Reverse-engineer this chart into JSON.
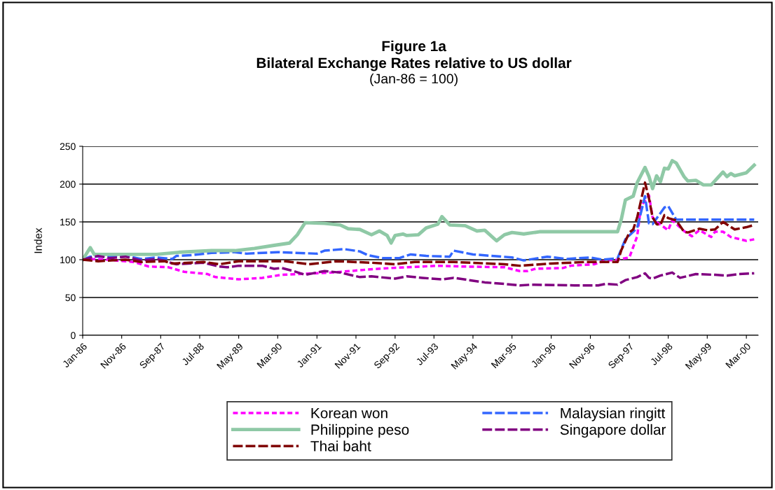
{
  "chart_data": {
    "type": "line",
    "title": "Figure 1a\nBilateral Exchange Rates relative to US dollar",
    "subtitle": "(Jan-86 = 100)",
    "ylabel": "Index",
    "xlim": [
      "1986-01",
      "2000-06"
    ],
    "ylim": [
      0,
      250
    ],
    "yticks": [
      0,
      50,
      100,
      150,
      200,
      250
    ],
    "xticks": [
      {
        "value": "1986-01",
        "label": "Jan-86"
      },
      {
        "value": "1986-11",
        "label": "Nov-86"
      },
      {
        "value": "1987-09",
        "label": "Sep-87"
      },
      {
        "value": "1988-07",
        "label": "Jul-88"
      },
      {
        "value": "1989-05",
        "label": "May-89"
      },
      {
        "value": "1990-03",
        "label": "Mar-90"
      },
      {
        "value": "1991-01",
        "label": "Jan-91"
      },
      {
        "value": "1991-11",
        "label": "Nov-91"
      },
      {
        "value": "1992-09",
        "label": "Sep-92"
      },
      {
        "value": "1993-07",
        "label": "Jul-93"
      },
      {
        "value": "1994-05",
        "label": "May-94"
      },
      {
        "value": "1995-03",
        "label": "Mar-95"
      },
      {
        "value": "1996-01",
        "label": "Jan-96"
      },
      {
        "value": "1996-11",
        "label": "Nov-96"
      },
      {
        "value": "1997-09",
        "label": "Sep-97"
      },
      {
        "value": "1998-07",
        "label": "Jul-98"
      },
      {
        "value": "1999-05",
        "label": "May-99"
      },
      {
        "value": "2000-03",
        "label": "Mar-00"
      }
    ],
    "grid": "y",
    "legend": "bottom",
    "marker": "none",
    "series": [
      {
        "name": "Korean won",
        "color": "#ff00ff",
        "line_style": "dotted",
        "x": [
          "1986-01",
          "1986-05",
          "1987-02",
          "1987-06",
          "1987-11",
          "1988-03",
          "1988-09",
          "1988-11",
          "1989-05",
          "1989-11",
          "1990-04",
          "1990-08",
          "1991-05",
          "1992-02",
          "1992-08",
          "1993-08",
          "1994-02",
          "1995-01",
          "1995-05",
          "1995-07",
          "1995-09",
          "1996-04",
          "1996-06",
          "1996-12",
          "1997-03",
          "1997-06",
          "1997-09",
          "1997-11",
          "1997-12",
          "1998-02",
          "1998-03",
          "1998-04",
          "1998-07",
          "1998-08",
          "1998-11",
          "1999-01",
          "1999-03",
          "1999-06",
          "1999-07",
          "1999-09",
          "1999-11",
          "2000-03",
          "2000-05"
        ],
        "values": [
          100,
          101,
          97,
          91,
          90,
          84,
          81,
          77,
          74,
          76,
          80,
          81,
          83,
          87,
          89,
          92,
          91,
          90,
          85,
          85,
          88,
          89,
          92,
          94,
          99,
          100,
          103,
          131,
          171,
          185,
          156,
          150,
          139,
          152,
          138,
          131,
          139,
          130,
          137,
          137,
          130,
          125,
          127
        ]
      },
      {
        "name": "Malaysian ringitt",
        "color": "#3366ff",
        "line_style": "dashed",
        "x": [
          "1986-01",
          "1986-03",
          "1986-12",
          "1987-04",
          "1987-08",
          "1987-12",
          "1988-01",
          "1988-05",
          "1988-10",
          "1989-04",
          "1989-07",
          "1990-03",
          "1991-01",
          "1991-03",
          "1991-08",
          "1991-12",
          "1992-02",
          "1992-06",
          "1992-10",
          "1993-01",
          "1993-05",
          "1993-11",
          "1993-12",
          "1994-05",
          "1995-03",
          "1995-06",
          "1995-12",
          "1996-05",
          "1996-11",
          "1997-02",
          "1997-06",
          "1997-08",
          "1997-11",
          "1998-01",
          "1998-02",
          "1998-03",
          "1998-06",
          "1998-07",
          "1998-09",
          "2000-05"
        ],
        "values": [
          100,
          104,
          105,
          101,
          103,
          101,
          105,
          106,
          109,
          110,
          108,
          110,
          108,
          112,
          114,
          111,
          106,
          102,
          102,
          107,
          105,
          104,
          112,
          107,
          103,
          99,
          104,
          101,
          103,
          100,
          102,
          127,
          142,
          184,
          148,
          147,
          169,
          171,
          153,
          153
        ]
      },
      {
        "name": "Philippine peso",
        "color": "#8fc9a6",
        "x": [
          "1986-01",
          "1986-03",
          "1986-04",
          "1987-08",
          "1988-02",
          "1988-10",
          "1989-04",
          "1989-09",
          "1990-02",
          "1990-06",
          "1990-08",
          "1990-10",
          "1991-03",
          "1991-07",
          "1991-09",
          "1991-12",
          "1992-03",
          "1992-05",
          "1992-07",
          "1992-08",
          "1992-09",
          "1992-11",
          "1992-12",
          "1993-03",
          "1993-05",
          "1993-08",
          "1993-09",
          "1993-11",
          "1994-03",
          "1994-06",
          "1994-08",
          "1994-11",
          "1995-01",
          "1995-03",
          "1995-06",
          "1995-10",
          "1996-07",
          "1997-06",
          "1997-07",
          "1997-08",
          "1997-10",
          "1997-11",
          "1998-01",
          "1998-02",
          "1998-03",
          "1998-04",
          "1998-05",
          "1998-06",
          "1998-07",
          "1998-08",
          "1998-09",
          "1998-11",
          "1998-12",
          "1999-02",
          "1999-04",
          "1999-06",
          "1999-09",
          "1999-10",
          "1999-11",
          "1999-12",
          "2000-03",
          "2000-05"
        ],
        "values": [
          100,
          116,
          107,
          107,
          110,
          112,
          112,
          115,
          119,
          122,
          133,
          149,
          148,
          146,
          141,
          140,
          133,
          138,
          132,
          122,
          132,
          134,
          132,
          133,
          142,
          147,
          157,
          146,
          145,
          138,
          139,
          125,
          133,
          136,
          134,
          137,
          137,
          137,
          154,
          179,
          184,
          202,
          222,
          210,
          194,
          211,
          203,
          221,
          220,
          231,
          228,
          210,
          204,
          205,
          199,
          199,
          216,
          210,
          214,
          211,
          215,
          225
        ]
      },
      {
        "name": "Singapore dollar",
        "color": "#800080",
        "line_style": "dashed",
        "x": [
          "1986-01",
          "1986-05",
          "1986-08",
          "1986-12",
          "1987-04",
          "1987-08",
          "1988-01",
          "1988-08",
          "1988-12",
          "1989-02",
          "1989-05",
          "1989-11",
          "1990-02",
          "1990-04",
          "1990-07",
          "1990-10",
          "1991-03",
          "1991-07",
          "1991-12",
          "1992-03",
          "1992-09",
          "1992-12",
          "1993-04",
          "1993-09",
          "1993-12",
          "1994-08",
          "1995-01",
          "1995-05",
          "1995-08",
          "1996-07",
          "1997-01",
          "1997-03",
          "1997-06",
          "1997-08",
          "1997-11",
          "1998-01",
          "1998-02",
          "1998-03",
          "1998-05",
          "1998-08",
          "1998-10",
          "1999-02",
          "1999-07",
          "1999-10",
          "2000-01",
          "2000-05"
        ],
        "values": [
          100,
          105,
          102,
          104,
          99,
          101,
          94,
          96,
          91,
          90,
          92,
          92,
          88,
          89,
          85,
          80,
          85,
          83,
          77,
          78,
          75,
          78,
          76,
          74,
          76,
          70,
          68,
          66,
          67,
          66,
          66,
          68,
          67,
          73,
          77,
          82,
          76,
          75,
          79,
          83,
          76,
          81,
          80,
          79,
          81,
          82
        ]
      },
      {
        "name": "Thai baht",
        "color": "#800000",
        "line_style": "dashed",
        "x": [
          "1986-01",
          "1986-05",
          "1986-12",
          "1987-04",
          "1987-10",
          "1987-12",
          "1988-08",
          "1988-12",
          "1989-05",
          "1990-05",
          "1990-11",
          "1991-06",
          "1992-03",
          "1992-09",
          "1993-02",
          "1993-12",
          "1995-01",
          "1995-05",
          "1996-01",
          "1996-10",
          "1997-06",
          "1997-07",
          "1997-09",
          "1997-10",
          "1997-11",
          "1998-01",
          "1998-02",
          "1998-03",
          "1998-04",
          "1998-05",
          "1998-06",
          "1998-07",
          "1998-09",
          "1998-11",
          "1998-12",
          "1999-03",
          "1999-05",
          "1999-07",
          "1999-09",
          "1999-12",
          "2000-03",
          "2000-05"
        ],
        "values": [
          100,
          98,
          100,
          97,
          98,
          95,
          97,
          94,
          98,
          98,
          94,
          98,
          96,
          94,
          97,
          97,
          94,
          92,
          95,
          97,
          97,
          113,
          136,
          140,
          156,
          202,
          181,
          156,
          147,
          146,
          159,
          155,
          152,
          137,
          136,
          141,
          139,
          140,
          150,
          140,
          143,
          146
        ]
      }
    ]
  }
}
